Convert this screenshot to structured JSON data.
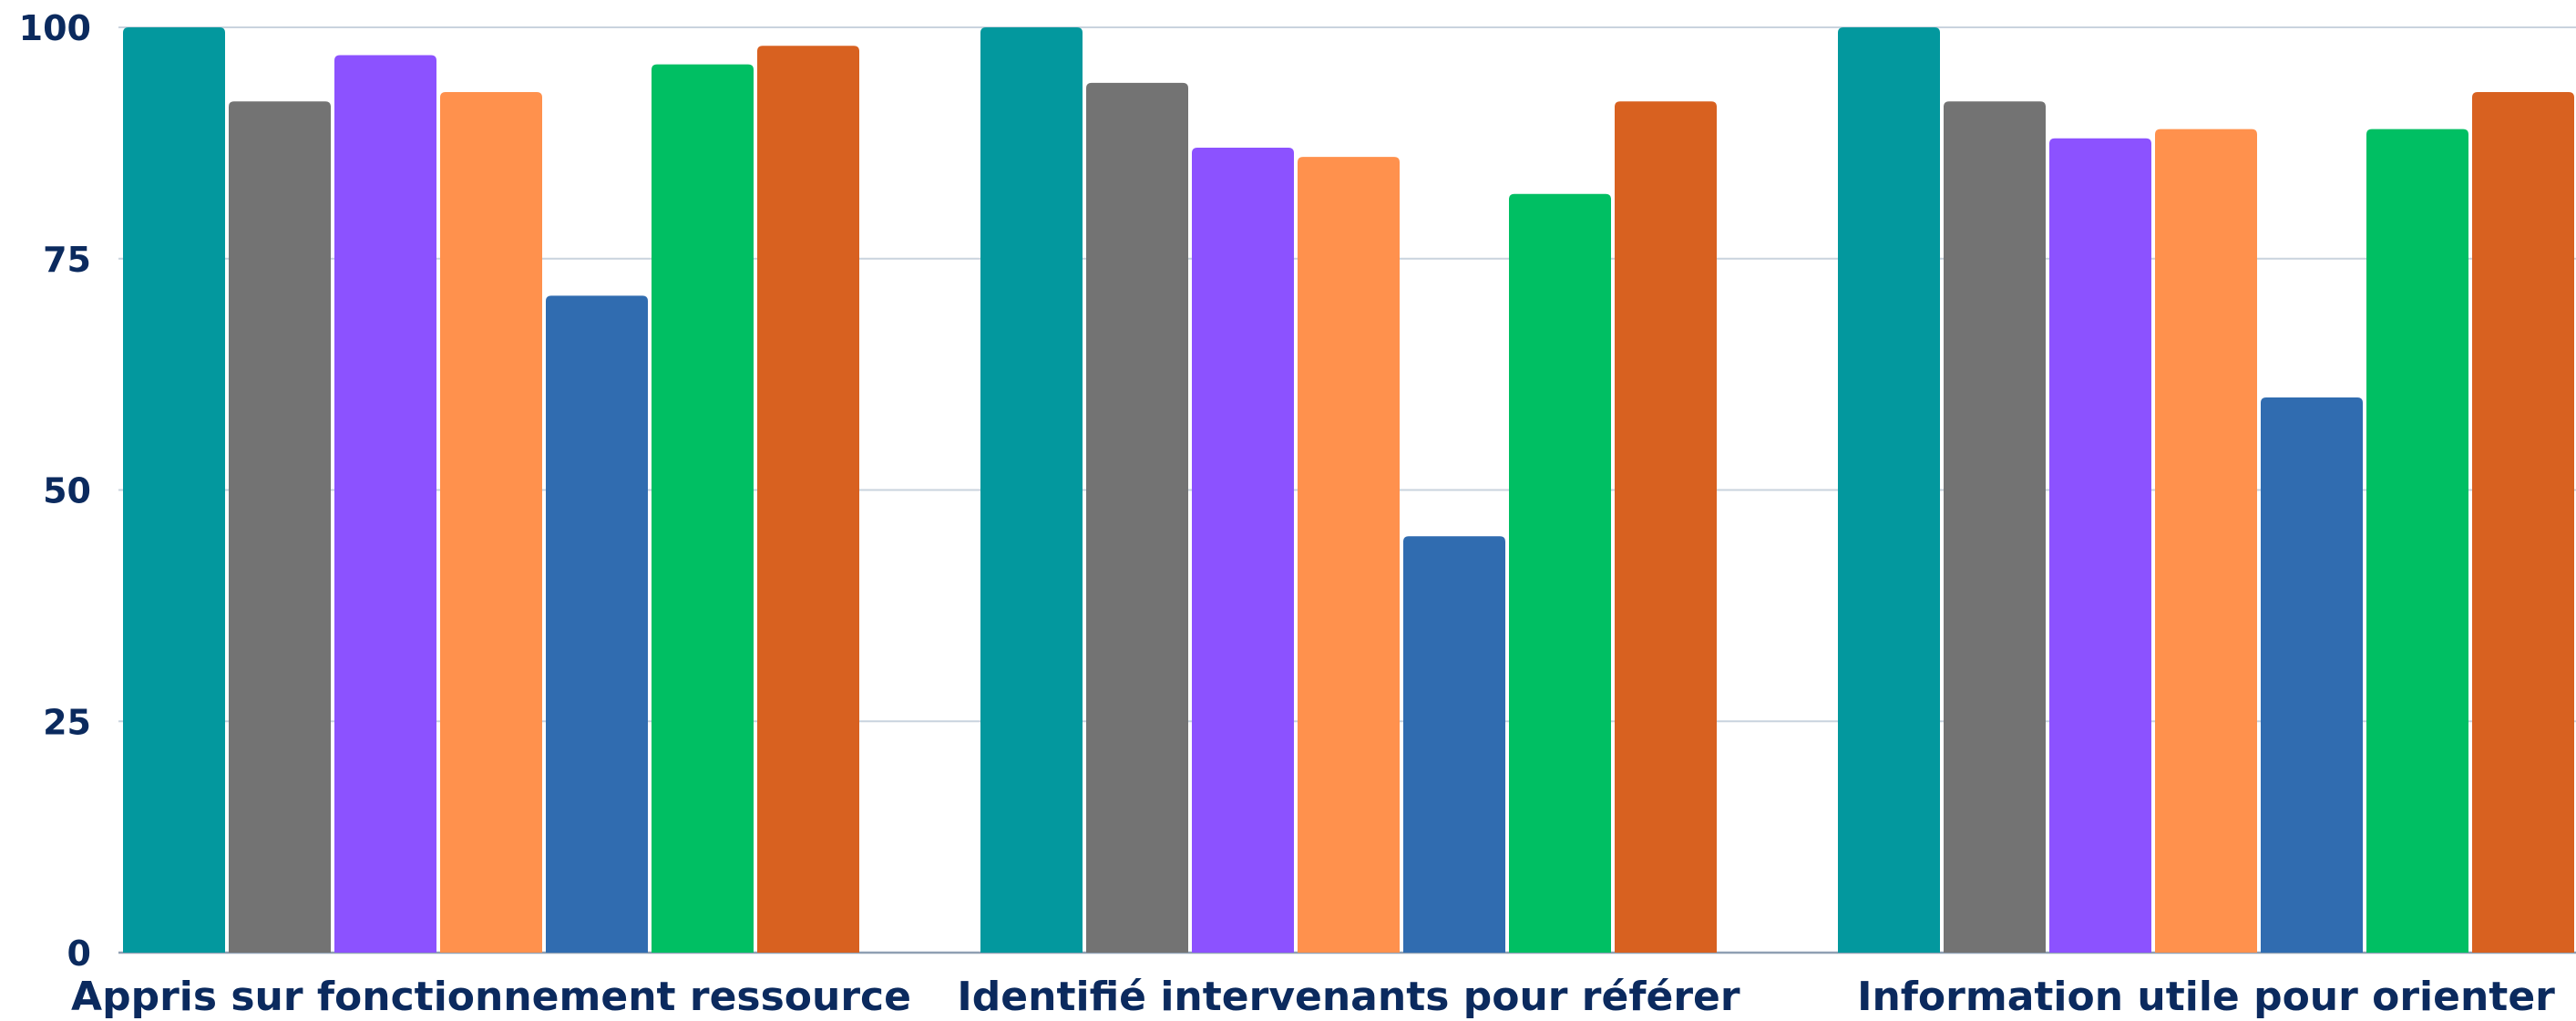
{
  "chart_data": {
    "type": "bar",
    "title": "",
    "xlabel": "",
    "ylabel": "",
    "ylim": [
      0,
      100
    ],
    "yticks": [
      0,
      25,
      50,
      75,
      100
    ],
    "grid": true,
    "legend": "none",
    "categories": [
      "Appris sur fonctionnement ressource",
      "Identifié intervenants pour référer",
      "Information utile pour orienter"
    ],
    "series": [
      {
        "values": [
          100,
          100,
          100
        ],
        "color": "#03989e"
      },
      {
        "values": [
          92,
          94,
          92
        ],
        "color": "#737373"
      },
      {
        "values": [
          97,
          87,
          88
        ],
        "color": "#8c52ff"
      },
      {
        "values": [
          93,
          86,
          89
        ],
        "color": "#ff914d"
      },
      {
        "values": [
          71,
          45,
          60
        ],
        "color": "#306cb0"
      },
      {
        "values": [
          96,
          82,
          89
        ],
        "color": "#00bf63"
      },
      {
        "values": [
          98,
          92,
          93
        ],
        "color": "#d86120"
      }
    ],
    "colors": {
      "axis_text": "#0b2a5e",
      "grid": "#c9d3de",
      "baseline": "#8fa0b3"
    }
  }
}
